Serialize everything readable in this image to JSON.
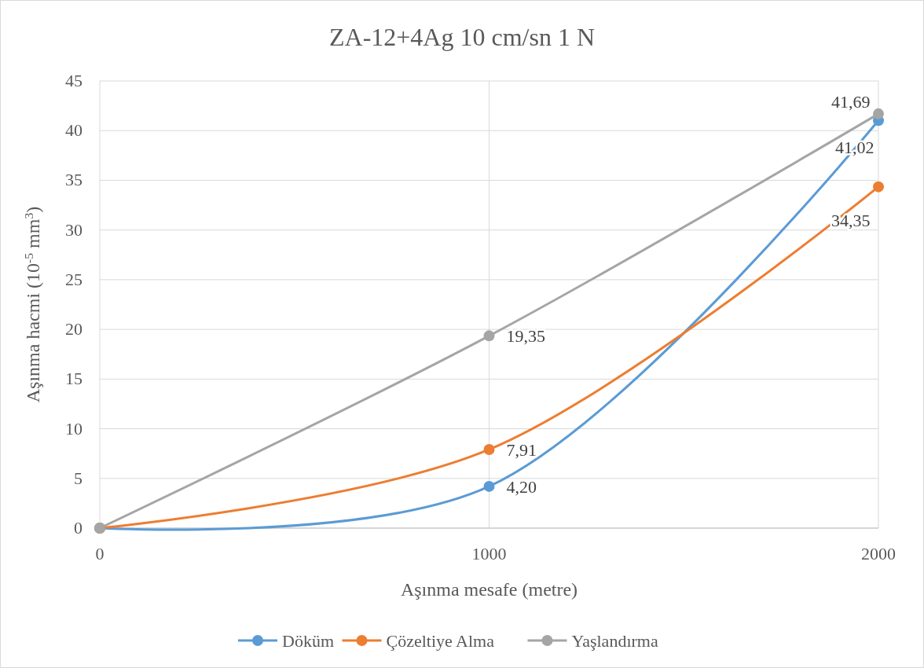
{
  "chart_data": {
    "type": "line",
    "title": "ZA-12+4Ag 10 cm/sn 1 N",
    "xlabel": "Aşınma mesafe (metre)",
    "ylabel": "Aşınma hacmi (10$^{-5}$ mm$^{3}$)",
    "x": [
      0,
      1000,
      2000
    ],
    "xlim": [
      0,
      2000
    ],
    "xticks": [
      0,
      1000,
      2000
    ],
    "ylim": [
      0,
      45
    ],
    "yticks": [
      0,
      5,
      10,
      15,
      20,
      25,
      30,
      35,
      40,
      45
    ],
    "series": [
      {
        "name": "Döküm",
        "color": "#5b9bd5",
        "values": [
          0,
          4.2,
          41.02
        ],
        "value_labels": [
          null,
          "4,20",
          "41,02"
        ]
      },
      {
        "name": "Çözeltiye Alma",
        "color": "#ed7d31",
        "values": [
          0,
          7.91,
          34.35
        ],
        "value_labels": [
          null,
          "7,91",
          "34,35"
        ]
      },
      {
        "name": "Yaşlandırma",
        "color": "#a5a5a5",
        "values": [
          0,
          19.35,
          41.69
        ],
        "value_labels": [
          null,
          "19,35",
          "41,69"
        ]
      }
    ],
    "grid": true,
    "legend": "bottom",
    "marker": "circle",
    "line_style": "solid"
  }
}
